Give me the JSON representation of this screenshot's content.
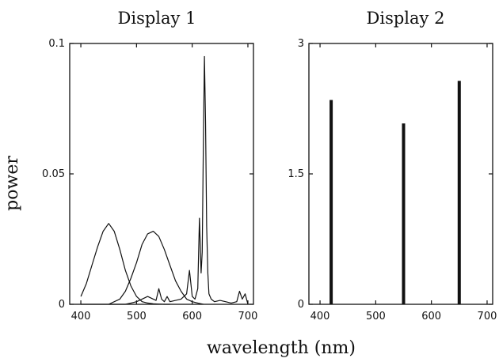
{
  "figure": {
    "ylabel": "power",
    "xlabel": "wavelength (nm)"
  },
  "chart_data": [
    {
      "type": "line",
      "title": "Display 1",
      "xlabel": "wavelength (nm)",
      "ylabel": "power",
      "xlim": [
        380,
        710
      ],
      "ylim": [
        0,
        0.1
      ],
      "xticks": [
        400,
        500,
        600,
        700
      ],
      "xtick_labels": [
        "400",
        "500",
        "600",
        "700"
      ],
      "yticks": [
        0,
        0.05,
        0.1
      ],
      "ytick_labels": [
        "0",
        "0.05",
        "0.1"
      ],
      "series": [
        {
          "x": [
            400,
            410,
            420,
            430,
            440,
            450,
            460,
            470,
            480,
            490,
            500,
            510,
            520,
            530,
            540,
            550,
            560
          ],
          "y": [
            0.003,
            0.008,
            0.015,
            0.022,
            0.028,
            0.031,
            0.028,
            0.021,
            0.013,
            0.007,
            0.003,
            0.001,
            0.0005,
            0.0002,
            0.0001,
            0.0,
            0.0
          ]
        },
        {
          "x": [
            450,
            470,
            480,
            490,
            500,
            510,
            520,
            530,
            540,
            550,
            560,
            570,
            580,
            590,
            600,
            610,
            620
          ],
          "y": [
            0.0,
            0.002,
            0.005,
            0.01,
            0.016,
            0.023,
            0.027,
            0.028,
            0.026,
            0.021,
            0.015,
            0.009,
            0.005,
            0.002,
            0.001,
            0.0005,
            0.0
          ]
        },
        {
          "x": [
            400,
            480,
            490,
            500,
            510,
            520,
            530,
            535,
            540,
            545,
            550,
            555,
            560,
            570,
            580,
            590,
            595,
            600,
            605,
            610,
            613,
            616,
            618,
            620,
            622,
            624,
            626,
            628,
            630,
            634,
            640,
            650,
            660,
            670,
            680,
            685,
            690,
            695,
            700
          ],
          "y": [
            0.0,
            0.0,
            0.0005,
            0.001,
            0.002,
            0.003,
            0.002,
            0.0015,
            0.006,
            0.002,
            0.001,
            0.003,
            0.001,
            0.0015,
            0.002,
            0.004,
            0.013,
            0.003,
            0.002,
            0.006,
            0.033,
            0.012,
            0.02,
            0.06,
            0.095,
            0.07,
            0.03,
            0.012,
            0.004,
            0.002,
            0.001,
            0.0015,
            0.001,
            0.0005,
            0.001,
            0.005,
            0.002,
            0.004,
            0.0
          ]
        }
      ]
    },
    {
      "type": "bar",
      "title": "Display 2",
      "xlabel": "wavelength (nm)",
      "xlim": [
        380,
        710
      ],
      "ylim": [
        0,
        3
      ],
      "xticks": [
        400,
        500,
        600,
        700
      ],
      "xtick_labels": [
        "400",
        "500",
        "600",
        "700"
      ],
      "yticks": [
        0,
        1.5,
        3
      ],
      "ytick_labels": [
        "0",
        "1.5",
        "3"
      ],
      "x": [
        420,
        550,
        650
      ],
      "values": [
        2.35,
        2.08,
        2.57
      ]
    }
  ]
}
